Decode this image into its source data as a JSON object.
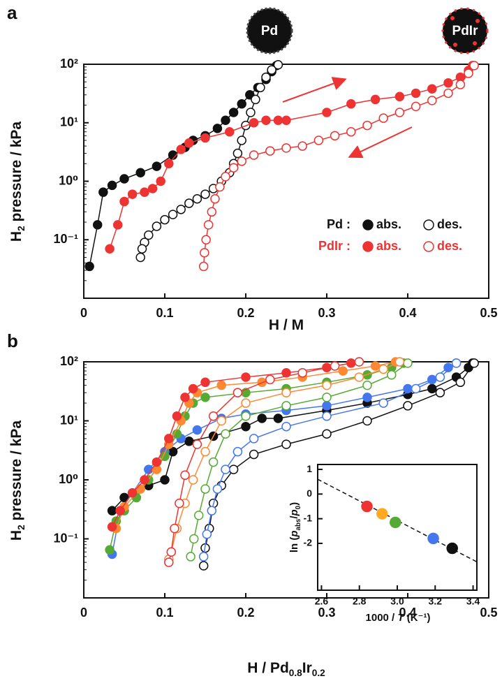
{
  "chart_data": [
    {
      "type": "scatter",
      "panel_label": "a",
      "log_y": true,
      "xlabel": [
        {
          "text": "H / M"
        }
      ],
      "ylabel": [
        {
          "text": "H"
        },
        {
          "text": "2",
          "sub": true
        },
        {
          "text": " pressure / kPa"
        }
      ],
      "xlim": [
        0,
        0.5
      ],
      "xticks": [
        0,
        0.1,
        0.2,
        0.3,
        0.4,
        0.5
      ],
      "ylim": [
        0.01,
        100
      ],
      "yticks": [
        {
          "value": 0.1,
          "label": "10⁻¹"
        },
        {
          "value": 1,
          "label": "10⁰"
        },
        {
          "value": 10,
          "label": "10¹"
        },
        {
          "value": 100,
          "label": "10²"
        }
      ],
      "annotations": [
        "Pd",
        "PdIr"
      ],
      "series_groups": [
        {
          "name": "Pd :",
          "color": "#111111",
          "series": [
            {
              "name": "abs.",
              "filled": true,
              "x": [
                0.007,
                0.017,
                0.024,
                0.035,
                0.05,
                0.07,
                0.09,
                0.11,
                0.125,
                0.135,
                0.15,
                0.165,
                0.175,
                0.185,
                0.195,
                0.205,
                0.215,
                0.225,
                0.232,
                0.238
              ],
              "values": [
                0.035,
                0.18,
                0.65,
                0.85,
                1.1,
                1.4,
                1.8,
                2.8,
                3.8,
                5,
                6,
                8,
                11,
                15,
                21,
                30,
                40,
                55,
                75,
                95
              ]
            },
            {
              "name": "des.",
              "filled": false,
              "x": [
                0.24,
                0.232,
                0.225,
                0.218,
                0.212,
                0.206,
                0.2,
                0.195,
                0.19,
                0.185,
                0.18,
                0.17,
                0.16,
                0.15,
                0.14,
                0.13,
                0.12,
                0.11,
                0.1,
                0.09,
                0.08,
                0.075,
                0.072,
                0.07
              ],
              "values": [
                98,
                80,
                60,
                40,
                25,
                15,
                9,
                5,
                3,
                2,
                1.4,
                1,
                0.75,
                0.6,
                0.5,
                0.42,
                0.33,
                0.27,
                0.22,
                0.17,
                0.12,
                0.09,
                0.07,
                0.05
              ]
            }
          ]
        },
        {
          "name": "PdIr :",
          "color": "#ee3333",
          "series": [
            {
              "name": "abs.",
              "filled": true,
              "x": [
                0.032,
                0.042,
                0.05,
                0.06,
                0.075,
                0.085,
                0.095,
                0.105,
                0.12,
                0.13,
                0.15,
                0.18,
                0.21,
                0.225,
                0.24,
                0.25,
                0.3,
                0.33,
                0.36,
                0.39,
                0.41,
                0.43,
                0.45,
                0.465,
                0.475,
                0.48
              ],
              "values": [
                0.07,
                0.18,
                0.45,
                0.6,
                0.65,
                0.75,
                1,
                2,
                3.5,
                4.5,
                5.5,
                7,
                10,
                11,
                11,
                11,
                15,
                21,
                25,
                28,
                32,
                38,
                48,
                60,
                78,
                95
              ]
            },
            {
              "name": "des.",
              "filled": false,
              "x": [
                0.482,
                0.475,
                0.465,
                0.45,
                0.43,
                0.41,
                0.39,
                0.37,
                0.35,
                0.33,
                0.31,
                0.29,
                0.27,
                0.25,
                0.23,
                0.21,
                0.195,
                0.185,
                0.175,
                0.168,
                0.162,
                0.158,
                0.154,
                0.151,
                0.149,
                0.148
              ],
              "values": [
                95,
                70,
                45,
                32,
                24,
                19,
                15,
                12,
                9,
                7,
                6,
                5,
                4,
                3.7,
                3.3,
                2.8,
                2.2,
                1.7,
                1.2,
                0.8,
                0.5,
                0.3,
                0.18,
                0.1,
                0.06,
                0.035
              ]
            }
          ]
        }
      ]
    },
    {
      "type": "scatter",
      "panel_label": "b",
      "log_y": true,
      "xlabel": [
        {
          "text": "H / Pd"
        },
        {
          "text": "0.8",
          "sub": true
        },
        {
          "text": "Ir"
        },
        {
          "text": "0.2",
          "sub": true
        }
      ],
      "ylabel": [
        {
          "text": "H"
        },
        {
          "text": "2",
          "sub": true
        },
        {
          "text": " pressure / kPa"
        }
      ],
      "xlim": [
        0,
        0.5
      ],
      "xticks": [
        0,
        0.1,
        0.2,
        0.3,
        0.4,
        0.5
      ],
      "ylim": [
        0.01,
        100
      ],
      "yticks": [
        {
          "value": 0.1,
          "label": "10⁻¹"
        },
        {
          "value": 1,
          "label": "10⁰"
        },
        {
          "value": 10,
          "label": "10¹"
        },
        {
          "value": 100,
          "label": "10²"
        }
      ],
      "series_groups": [
        {
          "color": "#111111",
          "series": [
            {
              "filled": true,
              "x": [
                0.035,
                0.05,
                0.08,
                0.1,
                0.11,
                0.13,
                0.16,
                0.2,
                0.22,
                0.24,
                0.3,
                0.35,
                0.4,
                0.43,
                0.46,
                0.475,
                0.48
              ],
              "values": [
                0.3,
                0.5,
                0.8,
                1,
                3,
                4.5,
                5.5,
                8,
                11,
                11,
                15,
                20,
                28,
                35,
                55,
                80,
                95
              ]
            },
            {
              "filled": false,
              "x": [
                0.482,
                0.465,
                0.44,
                0.4,
                0.35,
                0.3,
                0.25,
                0.21,
                0.185,
                0.17,
                0.16,
                0.155,
                0.15,
                0.148
              ],
              "values": [
                95,
                45,
                30,
                18,
                10,
                6,
                4,
                2.7,
                1.5,
                0.8,
                0.4,
                0.15,
                0.07,
                0.035
              ]
            }
          ]
        },
        {
          "color": "#4477ee",
          "series": [
            {
              "filled": true,
              "x": [
                0.035,
                0.045,
                0.06,
                0.08,
                0.1,
                0.12,
                0.14,
                0.17,
                0.2,
                0.25,
                0.3,
                0.35,
                0.4,
                0.43,
                0.45,
                0.46
              ],
              "values": [
                0.055,
                0.3,
                0.6,
                1.5,
                3,
                5,
                7,
                11,
                13,
                15,
                18,
                25,
                35,
                50,
                80,
                95
              ]
            },
            {
              "filled": false,
              "x": [
                0.46,
                0.44,
                0.41,
                0.37,
                0.3,
                0.25,
                0.21,
                0.19,
                0.175,
                0.165,
                0.158,
                0.152,
                0.148
              ],
              "values": [
                95,
                55,
                35,
                20,
                12,
                8,
                5,
                3,
                1.5,
                0.7,
                0.3,
                0.12,
                0.05
              ]
            }
          ]
        },
        {
          "color": "#55aa33",
          "series": [
            {
              "filled": true,
              "x": [
                0.032,
                0.04,
                0.05,
                0.065,
                0.08,
                0.1,
                0.115,
                0.125,
                0.135,
                0.15,
                0.2,
                0.25,
                0.3,
                0.35,
                0.38,
                0.395
              ],
              "values": [
                0.065,
                0.2,
                0.3,
                0.5,
                1,
                2.5,
                6,
                12,
                20,
                25,
                30,
                35,
                45,
                60,
                80,
                95
              ]
            },
            {
              "filled": false,
              "x": [
                0.4,
                0.38,
                0.35,
                0.3,
                0.25,
                0.2,
                0.175,
                0.16,
                0.15,
                0.142,
                0.136,
                0.132
              ],
              "values": [
                95,
                60,
                40,
                25,
                18,
                12,
                6,
                2,
                0.7,
                0.25,
                0.1,
                0.05
              ]
            }
          ]
        },
        {
          "color": "#ff8833",
          "series": [
            {
              "filled": true,
              "x": [
                0.04,
                0.05,
                0.07,
                0.09,
                0.105,
                0.12,
                0.13,
                0.14,
                0.17,
                0.22,
                0.27,
                0.32,
                0.36,
                0.385
              ],
              "values": [
                0.15,
                0.35,
                0.7,
                1.5,
                4,
                10,
                20,
                30,
                40,
                45,
                55,
                70,
                85,
                100
              ]
            },
            {
              "filled": false,
              "x": [
                0.39,
                0.37,
                0.34,
                0.3,
                0.25,
                0.2,
                0.17,
                0.15,
                0.135,
                0.125,
                0.115,
                0.108,
                0.105
              ],
              "values": [
                100,
                75,
                55,
                40,
                30,
                20,
                10,
                3,
                1,
                0.4,
                0.15,
                0.06,
                0.045
              ]
            }
          ]
        },
        {
          "color": "#ee3333",
          "series": [
            {
              "filled": true,
              "x": [
                0.035,
                0.045,
                0.06,
                0.075,
                0.09,
                0.105,
                0.115,
                0.125,
                0.135,
                0.15,
                0.2,
                0.25,
                0.3,
                0.33
              ],
              "values": [
                0.16,
                0.3,
                0.6,
                1,
                2,
                5,
                12,
                25,
                35,
                45,
                55,
                65,
                80,
                95
              ]
            },
            {
              "filled": false,
              "x": [
                0.34,
                0.31,
                0.27,
                0.23,
                0.19,
                0.16,
                0.14,
                0.125,
                0.118,
                0.112,
                0.108,
                0.105
              ],
              "values": [
                100,
                85,
                65,
                50,
                30,
                12,
                4,
                1.2,
                0.4,
                0.15,
                0.06,
                0.04
              ]
            }
          ]
        }
      ]
    },
    {
      "type": "scatter",
      "inset": true,
      "log_y": false,
      "xlabel": [
        {
          "text": "1000 / "
        },
        {
          "text": "T",
          "italic": true
        },
        {
          "text": " (K⁻¹)"
        }
      ],
      "ylabel": [
        {
          "text": "ln ("
        },
        {
          "text": "p",
          "italic": true
        },
        {
          "text": "abs",
          "sub": true
        },
        {
          "text": "/"
        },
        {
          "text": "p",
          "italic": true
        },
        {
          "text": "0",
          "sub": true
        },
        {
          "text": ")"
        }
      ],
      "xlim": [
        2.58,
        3.42
      ],
      "xticks": [
        2.6,
        2.8,
        {
          "value": 3,
          "label": "3.0"
        },
        3.2,
        3.4
      ],
      "ylim": [
        -3.9,
        1.2
      ],
      "yticks": [
        1,
        0,
        -1,
        -2
      ],
      "fit": {
        "x": [
          2.58,
          3.42
        ],
        "values": [
          0.6,
          -2.75
        ]
      },
      "series_groups": [
        {
          "color": "#ee3333",
          "series": [
            {
              "filled": true,
              "x": [
                2.84
              ],
              "values": [
                -0.5
              ]
            }
          ]
        },
        {
          "color": "#ffaa22",
          "series": [
            {
              "filled": true,
              "x": [
                2.92
              ],
              "values": [
                -0.8
              ]
            }
          ]
        },
        {
          "color": "#55aa33",
          "series": [
            {
              "filled": true,
              "x": [
                2.99
              ],
              "values": [
                -1.15
              ]
            }
          ]
        },
        {
          "color": "#4477ee",
          "series": [
            {
              "filled": true,
              "x": [
                3.19
              ],
              "values": [
                -1.8
              ]
            }
          ]
        },
        {
          "color": "#111111",
          "series": [
            {
              "filled": true,
              "x": [
                3.29
              ],
              "values": [
                -2.2
              ]
            }
          ]
        }
      ]
    }
  ]
}
